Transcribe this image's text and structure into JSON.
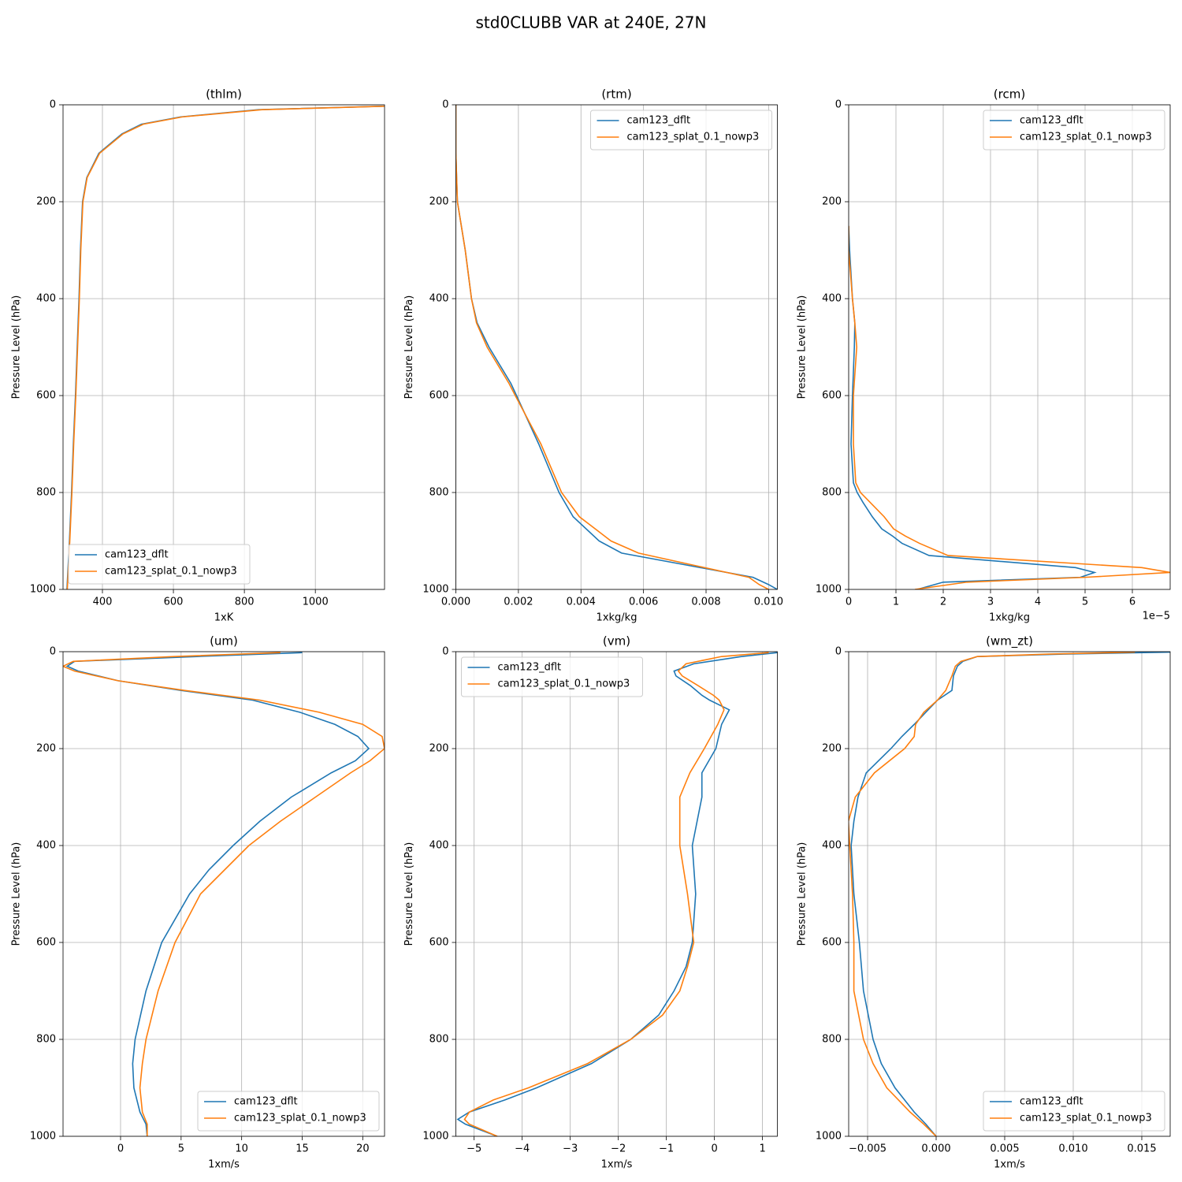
{
  "title": "std0CLUBB VAR at 240E, 27N",
  "chart_data": [
    {
      "type": "line",
      "title": "(thlm)",
      "xlabel": "1xK",
      "ylabel": "Pressure Level (hPa)",
      "xlim": [
        289,
        1195
      ],
      "xticks": [
        400,
        600,
        800,
        1000
      ],
      "ylim": [
        0,
        1000
      ],
      "yticks": [
        0,
        200,
        400,
        600,
        800,
        1000
      ],
      "y_inverted": true,
      "grid": true,
      "legend": "lower left",
      "y": [
        3,
        10,
        25,
        40,
        60,
        100,
        150,
        200,
        300,
        400,
        500,
        600,
        700,
        800,
        900,
        1000
      ],
      "series": [
        {
          "name": "cam123_dflt",
          "color": "#1f77b4",
          "values": [
            1190,
            840,
            620,
            510,
            455,
            390,
            356,
            344,
            338,
            334,
            329,
            324,
            318,
            313,
            307,
            300
          ]
        },
        {
          "name": "cam123_splat_0.1_nowp3",
          "color": "#ff7f0e",
          "values": [
            1195,
            850,
            625,
            515,
            458,
            392,
            357,
            345,
            339,
            335,
            330,
            325,
            319,
            314,
            308,
            301
          ]
        }
      ]
    },
    {
      "type": "line",
      "title": "(rtm)",
      "xlabel": "1xkg/kg",
      "ylabel": "Pressure Level (hPa)",
      "xlim": [
        0,
        0.01028
      ],
      "xticks": [
        {
          "value": 0,
          "label": "0.000"
        },
        {
          "value": 0.002,
          "label": "0.002"
        },
        {
          "value": 0.004,
          "label": "0.004"
        },
        {
          "value": 0.006,
          "label": "0.006"
        },
        {
          "value": 0.008,
          "label": "0.008"
        },
        {
          "value": 0.01,
          "label": "0.010"
        }
      ],
      "ylim": [
        0,
        1000
      ],
      "yticks": [
        0,
        200,
        400,
        600,
        800,
        1000
      ],
      "y_inverted": true,
      "grid": true,
      "legend": "upper right",
      "y": [
        0,
        100,
        200,
        300,
        400,
        450,
        500,
        575,
        600,
        700,
        800,
        850,
        900,
        925,
        950,
        975,
        990,
        1000
      ],
      "series": [
        {
          "name": "cam123_dflt",
          "color": "#1f77b4",
          "values": [
            0,
            0,
            5e-05,
            0.0003,
            0.0005,
            0.00068,
            0.00106,
            0.00176,
            0.00194,
            0.00265,
            0.0033,
            0.00375,
            0.00458,
            0.0053,
            0.0074,
            0.0095,
            0.01,
            0.01028
          ]
        },
        {
          "name": "cam123_splat_0.1_nowp3",
          "color": "#ff7f0e",
          "values": [
            0,
            0,
            5e-05,
            0.0003,
            0.0005,
            0.00066,
            0.001,
            0.0017,
            0.0019,
            0.00272,
            0.00338,
            0.00395,
            0.00496,
            0.00584,
            0.0076,
            0.00937,
            0.0097,
            0.01
          ]
        }
      ]
    },
    {
      "type": "line",
      "title": "(rcm)",
      "xlabel": "1xkg/kg",
      "ylabel": "Pressure Level (hPa)",
      "x_offset_label": "1e−5",
      "xlim": [
        0,
        6.8
      ],
      "xticks": [
        0,
        1,
        2,
        3,
        4,
        5,
        6
      ],
      "ylim": [
        0,
        1000
      ],
      "yticks": [
        0,
        200,
        400,
        600,
        800,
        1000
      ],
      "y_inverted": true,
      "grid": true,
      "legend": "upper right",
      "y": [
        250,
        300,
        400,
        450,
        500,
        600,
        700,
        780,
        800,
        820,
        850,
        875,
        890,
        905,
        930,
        955,
        965,
        975,
        985,
        1000
      ],
      "series": [
        {
          "name": "cam123_dflt",
          "color": "#1f77b4",
          "values": [
            0,
            0.02,
            0.08,
            0.13,
            0.12,
            0.08,
            0.05,
            0.1,
            0.18,
            0.3,
            0.5,
            0.7,
            0.93,
            1.13,
            1.7,
            4.8,
            5.2,
            4.9,
            2.0,
            1.45
          ]
        },
        {
          "name": "cam123_splat_0.1_nowp3",
          "color": "#ff7f0e",
          "values": [
            0,
            0,
            0.08,
            0.13,
            0.17,
            0.1,
            0.1,
            0.15,
            0.25,
            0.45,
            0.75,
            0.95,
            1.2,
            1.5,
            2.1,
            6.2,
            6.8,
            5.0,
            2.5,
            1.4
          ]
        }
      ]
    },
    {
      "type": "line",
      "title": "(um)",
      "xlabel": "1xm/s",
      "ylabel": "Pressure Level (hPa)",
      "xlim": [
        -4.75,
        21.8
      ],
      "xticks": [
        0,
        5,
        10,
        15,
        20
      ],
      "ylim": [
        0,
        1000
      ],
      "yticks": [
        0,
        200,
        400,
        600,
        800,
        1000
      ],
      "y_inverted": true,
      "grid": true,
      "legend": "lower right",
      "y": [
        2,
        10,
        20,
        30,
        40,
        60,
        80,
        100,
        125,
        150,
        175,
        200,
        225,
        250,
        300,
        350,
        400,
        450,
        500,
        600,
        700,
        800,
        850,
        900,
        950,
        975,
        1000
      ],
      "series": [
        {
          "name": "cam123_dflt",
          "color": "#1f77b4",
          "values": [
            15,
            6.3,
            -3.8,
            -4.4,
            -3.5,
            -0.2,
            5,
            10.9,
            14.8,
            17.7,
            19.6,
            20.5,
            19.4,
            17.4,
            14.1,
            11.5,
            9.3,
            7.3,
            5.7,
            3.4,
            2.1,
            1.2,
            1.0,
            1.1,
            1.6,
            2.1,
            2.2
          ]
        },
        {
          "name": "cam123_splat_0.1_nowp3",
          "color": "#ff7f0e",
          "values": [
            13.2,
            4.4,
            -3.9,
            -4.75,
            -3.8,
            -0.2,
            5.3,
            11.5,
            16.4,
            20,
            21.6,
            21.8,
            20.6,
            19,
            16.1,
            13.2,
            10.6,
            8.6,
            6.6,
            4.5,
            3.1,
            2.1,
            1.8,
            1.6,
            1.8,
            2.2,
            2.2
          ]
        }
      ]
    },
    {
      "type": "line",
      "title": "(vm)",
      "xlabel": "1xm/s",
      "ylabel": "Pressure Level (hPa)",
      "xlim": [
        -5.38,
        1.31
      ],
      "xticks": [
        {
          "value": -5,
          "label": "−5"
        },
        {
          "value": -4,
          "label": "−4"
        },
        {
          "value": -3,
          "label": "−3"
        },
        {
          "value": -2,
          "label": "−2"
        },
        {
          "value": -1,
          "label": "−1"
        },
        0,
        1
      ],
      "ylim": [
        0,
        1000
      ],
      "yticks": [
        0,
        200,
        400,
        600,
        800,
        1000
      ],
      "y_inverted": true,
      "grid": true,
      "legend": "upper left",
      "y": [
        2,
        10,
        25,
        40,
        50,
        70,
        90,
        100,
        120,
        150,
        200,
        250,
        300,
        400,
        500,
        600,
        650,
        700,
        750,
        800,
        850,
        900,
        925,
        950,
        965,
        975,
        1000
      ],
      "series": [
        {
          "name": "cam123_dflt",
          "color": "#1f77b4",
          "values": [
            1.31,
            0.56,
            -0.43,
            -0.84,
            -0.8,
            -0.5,
            -0.26,
            -0.1,
            0.31,
            0.15,
            0.03,
            -0.26,
            -0.26,
            -0.46,
            -0.39,
            -0.46,
            -0.59,
            -0.84,
            -1.16,
            -1.74,
            -2.56,
            -3.7,
            -4.36,
            -5.1,
            -5.34,
            -5.18,
            -4.52
          ]
        },
        {
          "name": "cam123_splat_0.1_nowp3",
          "color": "#ff7f0e",
          "values": [
            1.13,
            0.15,
            -0.59,
            -0.75,
            -0.67,
            -0.34,
            -0.02,
            0.1,
            0.2,
            0.07,
            -0.21,
            -0.51,
            -0.72,
            -0.72,
            -0.56,
            -0.43,
            -0.56,
            -0.72,
            -1.08,
            -1.74,
            -2.64,
            -3.87,
            -4.6,
            -5.1,
            -5.2,
            -5.1,
            -4.52
          ]
        }
      ]
    },
    {
      "type": "line",
      "title": "(wm_zt)",
      "xlabel": "1xm/s",
      "ylabel": "Pressure Level (hPa)",
      "xlim": [
        -0.00638,
        0.01707
      ],
      "xticks": [
        {
          "value": -0.005,
          "label": "−0.005"
        },
        {
          "value": 0,
          "label": "0.000"
        },
        {
          "value": 0.005,
          "label": "0.005"
        },
        {
          "value": 0.01,
          "label": "0.010"
        },
        {
          "value": 0.015,
          "label": "0.015"
        }
      ],
      "ylim": [
        0,
        1000
      ],
      "yticks": [
        0,
        200,
        400,
        600,
        800,
        1000
      ],
      "y_inverted": true,
      "grid": true,
      "legend": "lower right",
      "y": [
        1,
        5,
        10,
        20,
        30,
        50,
        80,
        100,
        125,
        150,
        175,
        200,
        250,
        300,
        350,
        400,
        500,
        600,
        700,
        800,
        850,
        900,
        950,
        975,
        1000
      ],
      "series": [
        {
          "name": "cam123_dflt",
          "color": "#1f77b4",
          "values": [
            0.01707,
            0.0093,
            0.003,
            0.00195,
            0.00155,
            0.00126,
            0.00115,
            0.0001,
            -0.00075,
            -0.0016,
            -0.0025,
            -0.0033,
            -0.0051,
            -0.0057,
            -0.006,
            -0.0062,
            -0.006,
            -0.0056,
            -0.0053,
            -0.0046,
            -0.004,
            -0.003,
            -0.0016,
            -0.00075,
            0
          ]
        },
        {
          "name": "cam123_splat_0.1_nowp3",
          "color": "#ff7f0e",
          "values": [
            0.0145,
            0.0082,
            0.003,
            0.0018,
            0.0014,
            0.00115,
            0.0007,
            0.0001,
            -0.0009,
            -0.0015,
            -0.0016,
            -0.0023,
            -0.0045,
            -0.0059,
            -0.0064,
            -0.0063,
            -0.0061,
            -0.006,
            -0.006,
            -0.0053,
            -0.0046,
            -0.0036,
            -0.0019,
            -0.0009,
            0
          ]
        }
      ]
    }
  ]
}
